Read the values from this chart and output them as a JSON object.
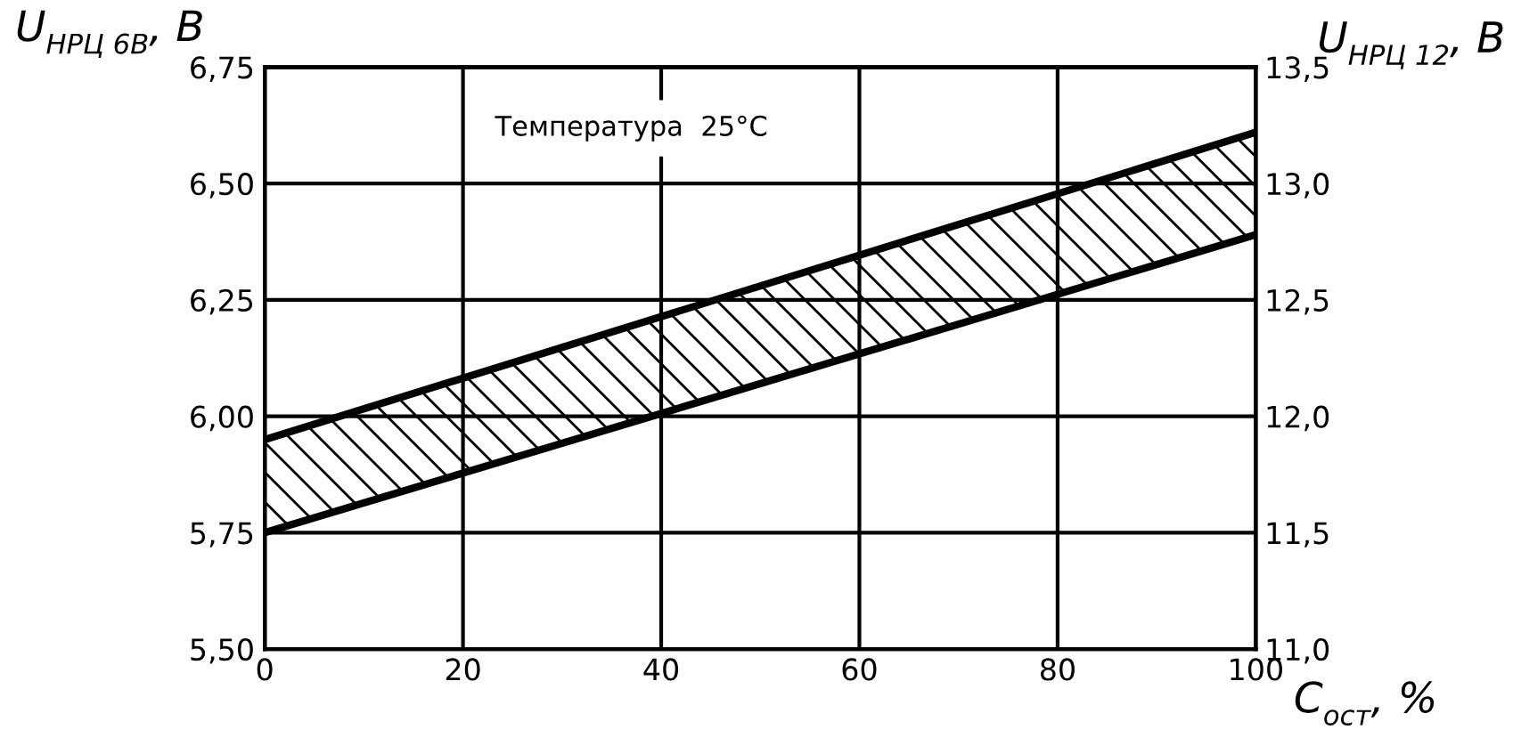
{
  "chart_data": {
    "type": "line",
    "xlabel": "C$_{ост}$, %",
    "ylabel": "U$_{НРЦ 6В}$, В",
    "y2label": "U$_{НРЦ 12}$, В",
    "annotations": [
      "Температура  25°C"
    ],
    "x": [
      0,
      100
    ],
    "series": [
      {
        "color": "#000000",
        "values": [
          5.75,
          6.39
        ]
      },
      {
        "color": "#000000",
        "values": [
          5.95,
          6.61
        ]
      },
      {
        "type": "area",
        "color": "#000000",
        "values": [
          null,
          null
        ],
        "lower": [
          5.75,
          6.39
        ],
        "upper": [
          5.95,
          6.61
        ]
      }
    ],
    "xlim": [
      0,
      100
    ],
    "xticks": [
      0,
      20,
      40,
      60,
      80,
      100
    ],
    "ylim": [
      5.5,
      6.75
    ],
    "yticks": [
      {
        "value": 5.5,
        "label": "5,50"
      },
      {
        "value": 5.75,
        "label": "5,75"
      },
      {
        "value": 6.0,
        "label": "6,00"
      },
      {
        "value": 6.25,
        "label": "6,25"
      },
      {
        "value": 6.5,
        "label": "6,50"
      },
      {
        "value": 6.75,
        "label": "6,75"
      }
    ],
    "y2lim": [
      11.0,
      13.5
    ],
    "y2ticks": [
      {
        "value": 11.0,
        "label": "11,0"
      },
      {
        "value": 11.5,
        "label": "11,5"
      },
      {
        "value": 12.0,
        "label": "12,0"
      },
      {
        "value": 12.5,
        "label": "12,5"
      },
      {
        "value": 13.0,
        "label": "13,0"
      },
      {
        "value": 13.5,
        "label": "13,5"
      }
    ],
    "grid": true,
    "legend": false,
    "marker": "none",
    "line_style": "solid"
  }
}
